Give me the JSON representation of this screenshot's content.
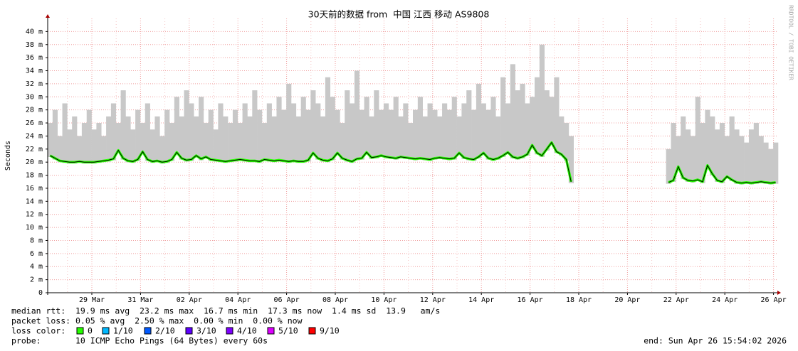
{
  "chart_data": {
    "type": "line",
    "title": "30天前的数据 from  中国 江西 移动 AS9808",
    "y_label": "Seconds",
    "watermark": "RRDTOOL / TOBI OETIKER",
    "ylim": [
      0,
      0.042
    ],
    "yticks": [
      0,
      {
        "value": 0.002,
        "label": "2 m"
      },
      {
        "value": 0.004,
        "label": "4 m"
      },
      {
        "value": 0.006,
        "label": "6 m"
      },
      {
        "value": 0.008,
        "label": "8 m"
      },
      {
        "value": 0.01,
        "label": "10 m"
      },
      {
        "value": 0.012,
        "label": "12 m"
      },
      {
        "value": 0.014,
        "label": "14 m"
      },
      {
        "value": 0.016,
        "label": "16 m"
      },
      {
        "value": 0.018,
        "label": "18 m"
      },
      {
        "value": 0.02,
        "label": "20 m"
      },
      {
        "value": 0.022,
        "label": "22 m"
      },
      {
        "value": 0.024,
        "label": "24 m"
      },
      {
        "value": 0.026,
        "label": "26 m"
      },
      {
        "value": 0.028,
        "label": "28 m"
      },
      {
        "value": 0.03,
        "label": "30 m"
      },
      {
        "value": 0.032,
        "label": "32 m"
      },
      {
        "value": 0.034,
        "label": "34 m"
      },
      {
        "value": 0.036,
        "label": "36 m"
      },
      {
        "value": 0.038,
        "label": "38 m"
      },
      {
        "value": 0.04,
        "label": "40 m"
      }
    ],
    "xticks": [
      "29 Mar",
      "31 Mar",
      "02 Apr",
      "04 Apr",
      "06 Apr",
      "08 Apr",
      "10 Apr",
      "12 Apr",
      "14 Apr",
      "16 Apr",
      "18 Apr",
      "20 Apr",
      "22 Apr",
      "24 Apr",
      "26 Apr"
    ],
    "grid": true,
    "median": {
      "color": "#26ff00",
      "line_color": "#000000",
      "values": [
        0.021,
        0.0206,
        0.0202,
        0.0201,
        0.02,
        0.02,
        0.0201,
        0.02,
        0.02,
        0.02,
        0.0201,
        0.0202,
        0.0203,
        0.0205,
        0.0218,
        0.0206,
        0.0202,
        0.0201,
        0.0204,
        0.0216,
        0.0204,
        0.0201,
        0.0202,
        0.02,
        0.0201,
        0.0204,
        0.0215,
        0.0206,
        0.0203,
        0.0204,
        0.021,
        0.0205,
        0.0208,
        0.0204,
        0.0203,
        0.0202,
        0.0201,
        0.0202,
        0.0203,
        0.0204,
        0.0203,
        0.0202,
        0.0202,
        0.0201,
        0.0204,
        0.0203,
        0.0202,
        0.0203,
        0.0202,
        0.0201,
        0.0202,
        0.0201,
        0.0201,
        0.0203,
        0.0214,
        0.0206,
        0.0203,
        0.0202,
        0.0205,
        0.0214,
        0.0206,
        0.0203,
        0.0201,
        0.0205,
        0.0206,
        0.0215,
        0.0207,
        0.0208,
        0.021,
        0.0208,
        0.0207,
        0.0206,
        0.0208,
        0.0207,
        0.0206,
        0.0205,
        0.0206,
        0.0205,
        0.0204,
        0.0206,
        0.0207,
        0.0206,
        0.0205,
        0.0206,
        0.0214,
        0.0207,
        0.0205,
        0.0204,
        0.0208,
        0.0214,
        0.0206,
        0.0204,
        0.0206,
        0.021,
        0.0215,
        0.0208,
        0.0206,
        0.0208,
        0.0212,
        0.0226,
        0.0214,
        0.021,
        0.022,
        0.023,
        0.0216,
        0.0212,
        0.0204,
        0.017,
        null,
        null,
        null,
        null,
        null,
        null,
        null,
        null,
        null,
        null,
        null,
        null,
        null,
        null,
        null,
        null,
        null,
        null,
        null,
        0.0169,
        0.0172,
        0.0193,
        0.0176,
        0.0172,
        0.0171,
        0.0173,
        0.017,
        0.0195,
        0.0182,
        0.0172,
        0.017,
        0.0178,
        0.0173,
        0.0169,
        0.0168,
        0.0169,
        0.0168,
        0.0169,
        0.017,
        0.0169,
        0.0168,
        0.0169
      ]
    },
    "smoke": {
      "color": "#c8c8c8",
      "values": [
        0.026,
        0.028,
        0.024,
        0.029,
        0.025,
        0.027,
        0.024,
        0.026,
        0.028,
        0.025,
        0.026,
        0.024,
        0.027,
        0.029,
        0.026,
        0.031,
        0.027,
        0.025,
        0.028,
        0.026,
        0.029,
        0.025,
        0.027,
        0.024,
        0.028,
        0.026,
        0.03,
        0.027,
        0.031,
        0.029,
        0.027,
        0.03,
        0.026,
        0.028,
        0.025,
        0.029,
        0.027,
        0.026,
        0.028,
        0.026,
        0.029,
        0.027,
        0.031,
        0.028,
        0.026,
        0.029,
        0.027,
        0.03,
        0.028,
        0.032,
        0.029,
        0.027,
        0.03,
        0.028,
        0.031,
        0.029,
        0.027,
        0.033,
        0.03,
        0.028,
        0.026,
        0.031,
        0.029,
        0.034,
        0.028,
        0.03,
        0.027,
        0.031,
        0.028,
        0.029,
        0.028,
        0.03,
        0.027,
        0.029,
        0.026,
        0.028,
        0.03,
        0.027,
        0.029,
        0.028,
        0.027,
        0.029,
        0.028,
        0.03,
        0.027,
        0.029,
        0.031,
        0.028,
        0.032,
        0.029,
        0.028,
        0.03,
        0.027,
        0.033,
        0.029,
        0.035,
        0.031,
        0.032,
        0.029,
        0.03,
        0.033,
        0.038,
        0.031,
        0.03,
        0.033,
        0.027,
        0.026,
        0.024,
        null,
        null,
        null,
        null,
        null,
        null,
        null,
        null,
        null,
        null,
        null,
        null,
        null,
        null,
        null,
        null,
        null,
        null,
        null,
        0.022,
        0.026,
        0.024,
        0.027,
        0.025,
        0.024,
        0.03,
        0.026,
        0.028,
        0.027,
        0.025,
        0.026,
        0.024,
        0.027,
        0.025,
        0.024,
        0.023,
        0.025,
        0.026,
        0.024,
        0.023,
        0.022,
        0.023
      ]
    },
    "stats": [
      "median rtt:  19.9 ms avg  23.2 ms max  16.7 ms min  17.3 ms now  1.4 ms sd  13.9   am/s",
      "packet loss: 0.05 % avg  2.50 % max  0.00 % min  0.00 % now"
    ],
    "loss_legend": {
      "label": "loss color:",
      "items": [
        {
          "name": "0",
          "color": "#26ff00"
        },
        {
          "name": "1/10",
          "color": "#00b8ff"
        },
        {
          "name": "2/10",
          "color": "#0059ff"
        },
        {
          "name": "3/10",
          "color": "#5e00ff"
        },
        {
          "name": "4/10",
          "color": "#7e00ff"
        },
        {
          "name": "5/10",
          "color": "#dd00ff"
        },
        {
          "name": "9/10",
          "color": "#ff0000"
        }
      ]
    },
    "probe": "probe:       10 ICMP Echo Pings (64 Bytes) every 60s",
    "end": "end: Sun Apr 26 15:54:02 2026"
  }
}
